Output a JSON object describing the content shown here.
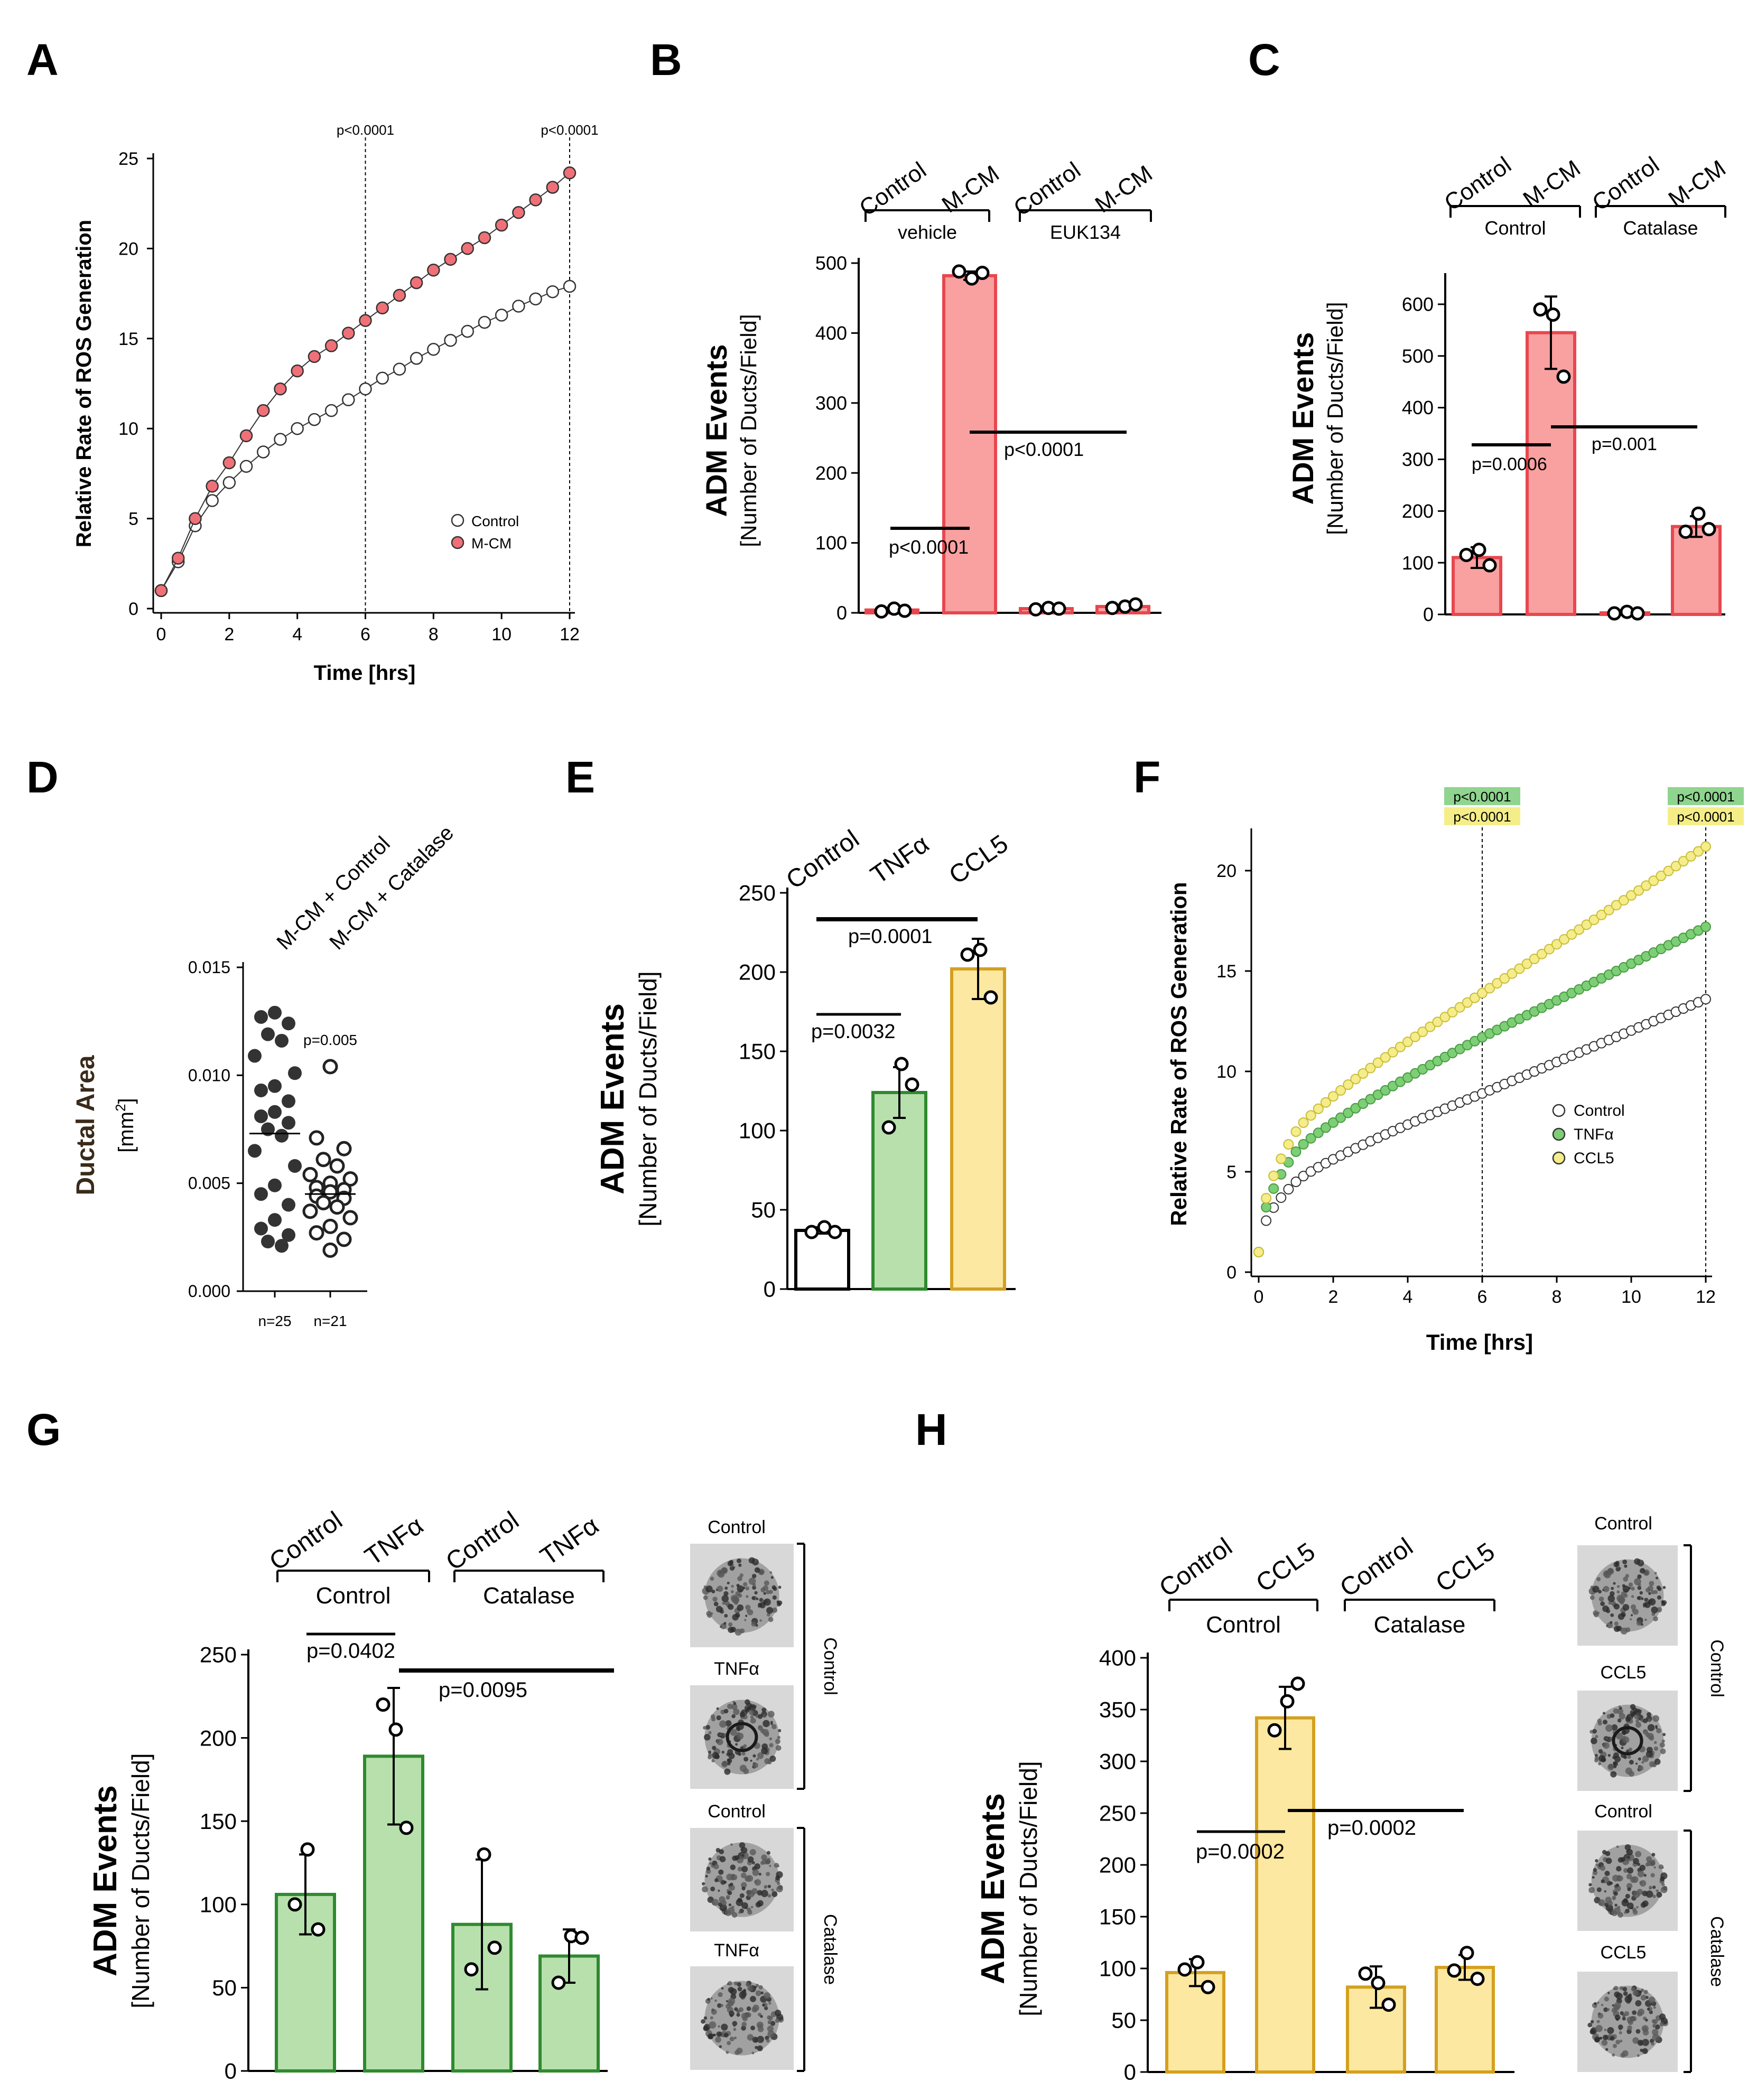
{
  "panels": {
    "A": {
      "letter": "A"
    },
    "B": {
      "letter": "B"
    },
    "C": {
      "letter": "C"
    },
    "D": {
      "letter": "D"
    },
    "E": {
      "letter": "E"
    },
    "F": {
      "letter": "F"
    },
    "G": {
      "letter": "G"
    },
    "H": {
      "letter": "H"
    }
  },
  "colors": {
    "red_fill": "#f9a0a0",
    "red_edge": "#e8474f",
    "red_marker": "#f07078",
    "green_fill": "#b7e0ad",
    "green_edge": "#2f8a2f",
    "green_marker": "#7ccf74",
    "yellow_fill": "#fce8a0",
    "yellow_edge": "#d4a020",
    "yellow_marker": "#f5ec8a",
    "white": "#ffffff",
    "black": "#000000",
    "dot_dark": "#333333",
    "pgreen_bg": "#8fd48f",
    "pyellow_bg": "#f5ee88"
  },
  "chart_data": [
    {
      "id": "A",
      "type": "line",
      "xlabel": "Time [hrs]",
      "ylabel": "Relative Rate of ROS Generation",
      "xlim": [
        0,
        12
      ],
      "ylim": [
        0,
        25
      ],
      "xticks": [
        0,
        2,
        4,
        6,
        8,
        10,
        12
      ],
      "yticks": [
        0,
        5,
        10,
        15,
        20,
        25
      ],
      "x": [
        0,
        0.5,
        1,
        1.5,
        2,
        2.5,
        3,
        3.5,
        4,
        4.5,
        5,
        5.5,
        6,
        6.5,
        7,
        7.5,
        8,
        8.5,
        9,
        9.5,
        10,
        10.5,
        11,
        11.5,
        12
      ],
      "series": [
        {
          "name": "Control",
          "values": [
            1.0,
            2.6,
            4.6,
            6.0,
            7.0,
            7.9,
            8.7,
            9.4,
            10.0,
            10.5,
            11.0,
            11.6,
            12.2,
            12.8,
            13.3,
            13.9,
            14.4,
            14.9,
            15.4,
            15.9,
            16.3,
            16.8,
            17.2,
            17.6,
            17.9
          ]
        },
        {
          "name": "M-CM",
          "values": [
            1.0,
            2.8,
            5.0,
            6.8,
            8.1,
            9.6,
            11.0,
            12.2,
            13.2,
            14.0,
            14.6,
            15.3,
            16.0,
            16.7,
            17.4,
            18.1,
            18.8,
            19.4,
            20.0,
            20.6,
            21.3,
            22.0,
            22.7,
            23.4,
            24.2
          ]
        }
      ],
      "vlines": [
        {
          "x": 6,
          "label": "p<0.0001"
        },
        {
          "x": 12,
          "label": "p<0.0001"
        }
      ]
    },
    {
      "id": "B",
      "type": "bar",
      "ylabel": "ADM Events",
      "ylabel2": "[Number of Ducts/Field]",
      "ylim": [
        0,
        500
      ],
      "yticks": [
        0,
        100,
        200,
        300,
        400,
        500
      ],
      "categories": [
        "Control",
        "M-CM",
        "Control",
        "M-CM"
      ],
      "groups": [
        "vehicle",
        "EUK134"
      ],
      "values": [
        4,
        482,
        6,
        9
      ],
      "errors": [
        0,
        6,
        0,
        0
      ],
      "points": [
        [
          2,
          6,
          3
        ],
        [
          488,
          478,
          486
        ],
        [
          5,
          7,
          6
        ],
        [
          7,
          9,
          12
        ]
      ],
      "pvalues": [
        "p<0.0001",
        "p<0.0001"
      ]
    },
    {
      "id": "C",
      "type": "bar",
      "ylabel": "ADM Events",
      "ylabel2": "[Number of Ducts/Field]",
      "ylim": [
        0,
        650
      ],
      "yticks": [
        0,
        100,
        200,
        300,
        400,
        500,
        600
      ],
      "categories": [
        "Control",
        "M-CM",
        "Control",
        "M-CM"
      ],
      "groups": [
        "Control",
        "Catalase"
      ],
      "values": [
        110,
        545,
        3,
        170
      ],
      "errors": [
        20,
        70,
        0,
        20
      ],
      "points": [
        [
          115,
          125,
          95
        ],
        [
          590,
          580,
          460
        ],
        [
          2,
          5,
          2
        ],
        [
          160,
          195,
          165
        ]
      ],
      "pvalues": [
        "p=0.0006",
        "p=0.001"
      ]
    },
    {
      "id": "D",
      "type": "scatter",
      "ylabel": "Ductal Area",
      "ylabel2": "[mm",
      "ylabel_sup": "2",
      "ylabel_end": "]",
      "ylim": [
        0,
        0.015
      ],
      "yticks": [
        "0.000",
        "0.005",
        "0.010",
        "0.015"
      ],
      "categories": [
        "M-CM + Control",
        "M-CM + Catalase"
      ],
      "n_labels": [
        "n=25",
        "n=21"
      ],
      "means": [
        0.0073,
        0.0045
      ],
      "pvalue": "p=0.005",
      "points": [
        [
          0.0129,
          0.0127,
          0.0124,
          0.0119,
          0.0116,
          0.0109,
          0.0101,
          0.0095,
          0.0093,
          0.0088,
          0.0083,
          0.0081,
          0.0078,
          0.0075,
          0.0072,
          0.0065,
          0.0058,
          0.0049,
          0.0045,
          0.004,
          0.0033,
          0.0029,
          0.0026,
          0.0023,
          0.0021
        ],
        [
          0.0104,
          0.0071,
          0.0066,
          0.0061,
          0.0058,
          0.0054,
          0.0052,
          0.005,
          0.0048,
          0.0047,
          0.0046,
          0.0044,
          0.0043,
          0.0041,
          0.0039,
          0.0037,
          0.0034,
          0.003,
          0.0027,
          0.0024,
          0.0019
        ]
      ]
    },
    {
      "id": "E",
      "type": "bar",
      "ylabel": "ADM Events",
      "ylabel2": "[Number of Ducts/Field]",
      "ylim": [
        0,
        250
      ],
      "yticks": [
        0,
        50,
        100,
        150,
        200,
        250
      ],
      "categories": [
        "Control",
        "TNFα",
        "CCL5"
      ],
      "values": [
        37,
        124,
        202
      ],
      "errors": [
        2,
        16,
        19
      ],
      "points": [
        [
          36,
          39,
          36
        ],
        [
          102,
          142,
          129
        ],
        [
          211,
          214,
          184
        ]
      ],
      "pvalues": [
        "p=0.0032",
        "p=0.0001"
      ]
    },
    {
      "id": "F",
      "type": "line",
      "xlabel": "Time [hrs]",
      "ylabel": "Relative Rate of ROS Generation",
      "xlim": [
        0,
        12
      ],
      "ylim": [
        0,
        22
      ],
      "xticks": [
        0,
        2,
        4,
        6,
        8,
        10,
        12
      ],
      "yticks": [
        0,
        5,
        10,
        15,
        20
      ],
      "series": [
        {
          "name": "Control",
          "start": 1.0,
          "end": 13.6,
          "shape": [
            4.5,
            8.9,
            13.6
          ]
        },
        {
          "name": "TNFα",
          "start": 1.0,
          "end": 17.2,
          "shape": [
            6.0,
            11.7,
            17.2
          ]
        },
        {
          "name": "CCL5",
          "start": 1.0,
          "end": 21.2,
          "shape": [
            7.0,
            13.9,
            21.2
          ]
        }
      ],
      "vlines": [
        {
          "x": 6,
          "labels": [
            "p<0.0001",
            "p<0.0001"
          ]
        },
        {
          "x": 12,
          "labels": [
            "p<0.0001",
            "p<0.0001"
          ]
        }
      ]
    },
    {
      "id": "G",
      "type": "bar",
      "ylabel": "ADM Events",
      "ylabel2": "[Number of Ducts/Field]",
      "ylim": [
        0,
        250
      ],
      "yticks": [
        0,
        50,
        100,
        150,
        200,
        250
      ],
      "categories": [
        "Control",
        "TNFα",
        "Control",
        "TNFα"
      ],
      "groups": [
        "Control",
        "Catalase"
      ],
      "values": [
        106,
        189,
        88,
        69
      ],
      "errors": [
        24,
        41,
        39,
        16
      ],
      "points": [
        [
          100,
          133,
          85
        ],
        [
          220,
          205,
          146
        ],
        [
          61,
          130,
          74
        ],
        [
          53,
          81,
          80
        ]
      ],
      "pvalues": [
        "p=0.0402",
        "p=0.0095"
      ],
      "images": {
        "labels": [
          "Control",
          "TNFα",
          "Control",
          "TNFα"
        ],
        "groups": [
          "Control",
          "Catalase"
        ]
      }
    },
    {
      "id": "H",
      "type": "bar",
      "ylabel": "ADM Events",
      "ylabel2": "[Number of Ducts/Field]",
      "ylim": [
        0,
        400
      ],
      "yticks": [
        0,
        50,
        100,
        150,
        200,
        250,
        300,
        350,
        400
      ],
      "categories": [
        "Control",
        "CCL5",
        "Control",
        "CCL5"
      ],
      "groups": [
        "Control",
        "Catalase"
      ],
      "values": [
        96,
        342,
        82,
        101
      ],
      "errors": [
        13,
        30,
        20,
        12
      ],
      "points": [
        [
          99,
          106,
          82
        ],
        [
          330,
          358,
          375
        ],
        [
          95,
          86,
          65
        ],
        [
          98,
          115,
          90
        ]
      ],
      "pvalues": [
        "p=0.0002",
        "p=0.0002"
      ],
      "images": {
        "labels": [
          "Control",
          "CCL5",
          "Control",
          "CCL5"
        ],
        "groups": [
          "Control",
          "Catalase"
        ]
      }
    }
  ]
}
